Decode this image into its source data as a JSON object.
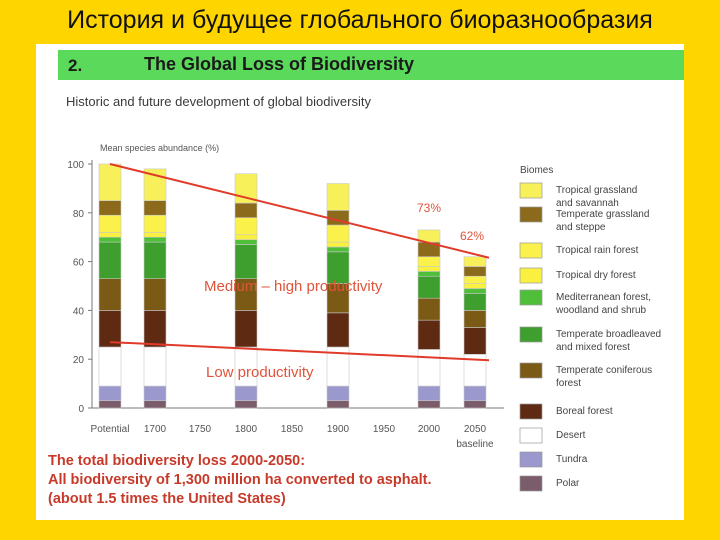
{
  "slide_title": "История и будущее глобального биоразнообразия",
  "header": {
    "number": "2.",
    "title": "The Global Loss of Biodiversity"
  },
  "chart_data": {
    "type": "bar",
    "title": "Historic and future development of global biodiversity",
    "ylabel": "Mean species abundance (%)",
    "ylim": [
      0,
      100
    ],
    "yticks": [
      0,
      20,
      40,
      60,
      80,
      100
    ],
    "x_ticks": [
      "Potential",
      "1700",
      "1750",
      "1800",
      "1850",
      "1900",
      "1950",
      "2000",
      "2050"
    ],
    "x_extra_label": "baseline",
    "bars": [
      {
        "label": "Potential",
        "total": 100,
        "segments": [
          3,
          6,
          16,
          15,
          13,
          15,
          2,
          2,
          7,
          6,
          15
        ]
      },
      {
        "label": "1700",
        "total": 98,
        "segments": [
          3,
          6,
          16,
          15,
          13,
          15,
          2,
          2,
          7,
          6,
          13
        ]
      },
      {
        "label": "1800",
        "total": 96,
        "segments": [
          3,
          6,
          16,
          15,
          13,
          14,
          2,
          2,
          7,
          6,
          12
        ]
      },
      {
        "label": "1900",
        "total": 92,
        "segments": [
          3,
          6,
          16,
          14,
          12,
          13,
          2,
          2,
          7,
          6,
          11
        ]
      },
      {
        "label": "2000",
        "total": 73,
        "segments": [
          3,
          6,
          15,
          12,
          9,
          9,
          2,
          2,
          4,
          6,
          5
        ]
      },
      {
        "label": "2050",
        "total": 62,
        "segments": [
          3,
          6,
          13,
          11,
          7,
          7,
          2,
          2,
          3,
          4,
          4
        ]
      }
    ],
    "legend_title": "Biomes",
    "legend": [
      {
        "name": "Tropical grassland and savannah",
        "lines": [
          "Tropical grassland",
          "and savannah"
        ],
        "color": "#F7F05A"
      },
      {
        "name": "Temperate grassland and steppe",
        "lines": [
          "Temperate grassland",
          "and steppe"
        ],
        "color": "#8C6A1C"
      },
      {
        "name": "Tropical rain forest",
        "lines": [
          "Tropical rain forest"
        ],
        "color": "#FAF24A"
      },
      {
        "name": "Tropical dry forest",
        "lines": [
          "Tropical dry forest"
        ],
        "color": "#FAF040"
      },
      {
        "name": "Mediterranean forest, woodland and shrub",
        "lines": [
          "Mediterranean forest,",
          "woodland and shrub"
        ],
        "color": "#4FBF3A"
      },
      {
        "name": "Temperate broadleaved and mixed forest",
        "lines": [
          "Temperate broadleaved",
          "and mixed forest"
        ],
        "color": "#3E9E2E"
      },
      {
        "name": "Temperate coniferous forest",
        "lines": [
          "Temperate coniferous",
          "forest"
        ],
        "color": "#7A5A14"
      },
      {
        "name": "Boreal forest",
        "lines": [
          "Boreal forest"
        ],
        "color": "#5E2A12"
      },
      {
        "name": "Desert",
        "lines": [
          "Desert"
        ],
        "color": "#FFFFFF"
      },
      {
        "name": "Tundra",
        "lines": [
          "Tundra"
        ],
        "color": "#9A98CC"
      },
      {
        "name": "Polar",
        "lines": [
          "Polar"
        ],
        "color": "#7A5C6A"
      }
    ],
    "annotations": {
      "pct_2000": "73%",
      "pct_2050": "62%",
      "medium_high": "Medium – high productivity",
      "low": "Low productivity"
    },
    "trend_lines": [
      {
        "from": [
          "Potential",
          100
        ],
        "to": [
          "2050",
          62
        ]
      },
      {
        "from": [
          "Potential",
          27
        ],
        "to": [
          "2050",
          20
        ]
      }
    ]
  },
  "footnote": [
    "The total biodiversity loss 2000-2050:",
    "All biodiversity of 1,300 million ha converted to asphalt.",
    "(about 1.5 times the United States)"
  ]
}
